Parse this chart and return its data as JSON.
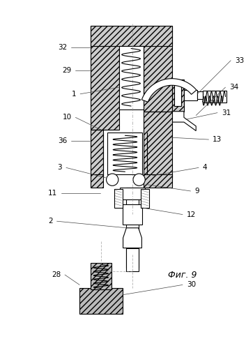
{
  "bg_color": "#ffffff",
  "line_color": "#000000",
  "fig_width": 3.53,
  "fig_height": 4.99,
  "title": "Фиг. 9"
}
